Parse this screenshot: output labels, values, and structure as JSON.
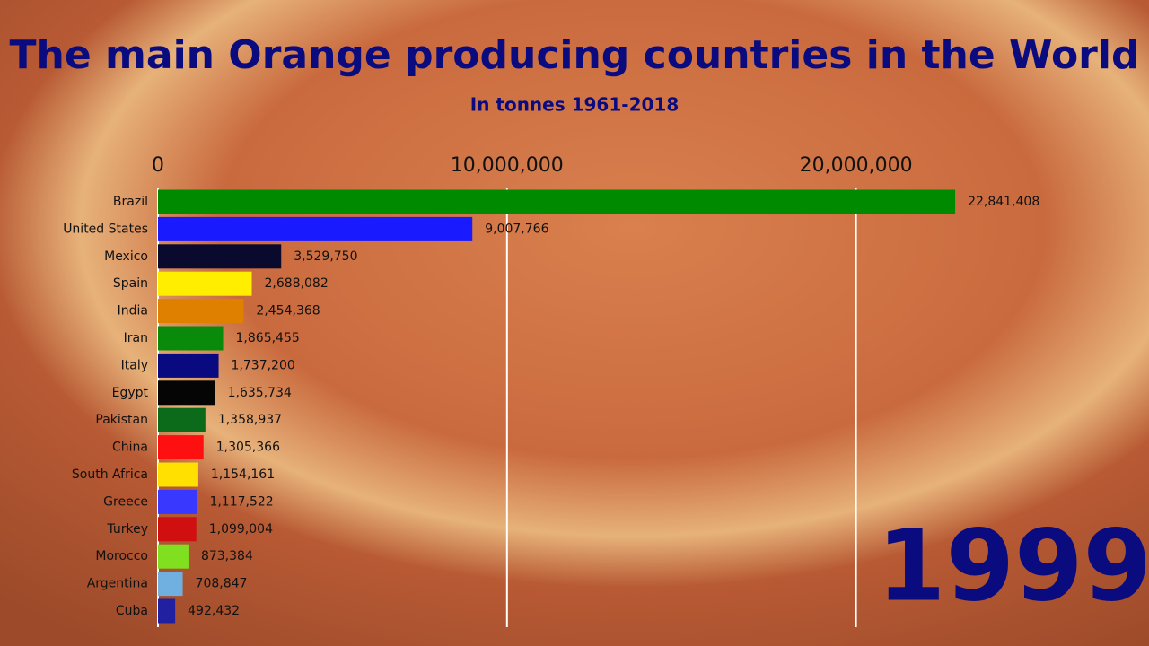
{
  "chart_data": {
    "type": "bar",
    "orientation": "horizontal",
    "title": "The main Orange producing countries in the World",
    "subtitle": "In tonnes 1961-2018",
    "annotation": "1999",
    "categories": [
      "Brazil",
      "United States",
      "Mexico",
      "Spain",
      "India",
      "Iran",
      "Italy",
      "Egypt",
      "Pakistan",
      "China",
      "South Africa",
      "Greece",
      "Turkey",
      "Morocco",
      "Argentina",
      "Cuba"
    ],
    "values": [
      22841408,
      9007766,
      3529750,
      2688082,
      2454368,
      1865455,
      1737200,
      1635734,
      1358937,
      1305366,
      1154161,
      1117522,
      1099004,
      873384,
      708847,
      492432
    ],
    "value_labels": [
      "22,841,408",
      "9,007,766",
      "3,529,750",
      "2,688,082",
      "2,454,368",
      "1,865,455",
      "1,737,200",
      "1,635,734",
      "1,358,937",
      "1,305,366",
      "1,154,161",
      "1,117,522",
      "1,099,004",
      "873,384",
      "708,847",
      "492,432"
    ],
    "colors": [
      "#008a00",
      "#1a1aff",
      "#0a0a2e",
      "#ffee00",
      "#e08000",
      "#0a8a0a",
      "#0a0a80",
      "#050505",
      "#0b6b1b",
      "#ff1010",
      "#ffe000",
      "#3838ff",
      "#d01010",
      "#80e020",
      "#70b0e0",
      "#2020a0"
    ],
    "xlim": [
      0,
      25000000
    ],
    "xticks": [
      0,
      {
        "value": 10000000,
        "label": "10,000,000"
      },
      {
        "value": 20000000,
        "label": "20,000,000"
      }
    ],
    "grid": true
  }
}
